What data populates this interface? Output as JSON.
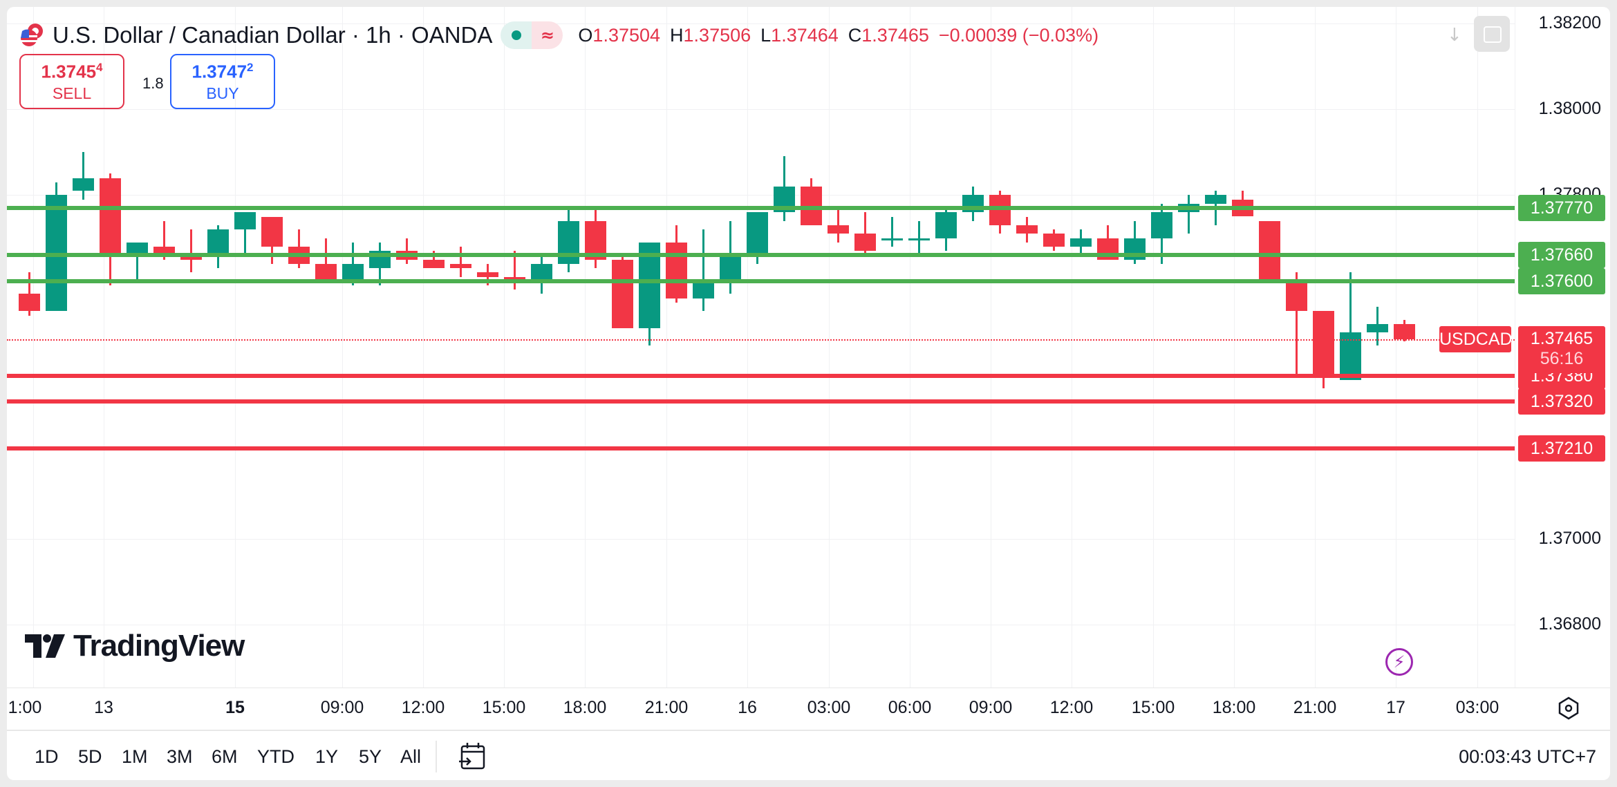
{
  "header": {
    "title": "U.S. Dollar / Canadian Dollar · 1h · OANDA",
    "symbol_icon": "usd-cad-flags-icon",
    "status_chip": {
      "market_open_icon": "green-dot",
      "delayed_icon": "≈"
    },
    "ohlc": {
      "o_label": "O",
      "o": "1.37504",
      "h_label": "H",
      "h": "1.37506",
      "l_label": "L",
      "l": "1.37464",
      "c_label": "C",
      "c": "1.37465",
      "change": "−0.00039 (−0.03%)"
    }
  },
  "trade": {
    "sell_price": "1.3745",
    "sell_sup": "4",
    "sell_label": "SELL",
    "spread": "1.8",
    "buy_price": "1.3747",
    "buy_sup": "2",
    "buy_label": "BUY"
  },
  "colors": {
    "up": "#089981",
    "down": "#f23645",
    "support_line": "#4caf50",
    "resistance_line": "#f23645",
    "text": "#131722",
    "buy_blue": "#2962ff",
    "event_purple": "#9c27b0"
  },
  "price_axis": {
    "ticks": [
      "1.38200",
      "1.38000",
      "1.37800",
      "1.37000",
      "1.36800"
    ],
    "current_symbol": "USDCAD",
    "current_price": "1.37465",
    "countdown": "56:16"
  },
  "time_axis": {
    "labels": [
      "1:00",
      "13",
      "15",
      "09:00",
      "12:00",
      "15:00",
      "18:00",
      "21:00",
      "16",
      "03:00",
      "06:00",
      "09:00",
      "12:00",
      "15:00",
      "18:00",
      "21:00",
      "17",
      "03:00"
    ]
  },
  "toolbar": {
    "ranges": [
      "1D",
      "5D",
      "1M",
      "3M",
      "6M",
      "YTD",
      "1Y",
      "5Y",
      "All"
    ],
    "clock": "00:03:43 UTC+7"
  },
  "logo": {
    "text": "TradingView"
  },
  "chart_data": {
    "type": "candlestick",
    "title": "U.S. Dollar / Canadian Dollar · 1h · OANDA",
    "ylim": [
      1.366,
      1.383
    ],
    "y_ticks": [
      1.382,
      1.38,
      1.378,
      1.37,
      1.368
    ],
    "horizontal_lines": [
      {
        "price": 1.3777,
        "label": "1.37770",
        "color": "#4caf50"
      },
      {
        "price": 1.3766,
        "label": "1.37660",
        "color": "#4caf50"
      },
      {
        "price": 1.376,
        "label": "1.37600",
        "color": "#4caf50"
      },
      {
        "price": 1.3738,
        "label": "1.37380",
        "color": "#f23645"
      },
      {
        "price": 1.3732,
        "label": "1.37320",
        "color": "#f23645"
      },
      {
        "price": 1.3721,
        "label": "1.37210",
        "color": "#f23645"
      }
    ],
    "last_price": 1.37465,
    "candles": [
      {
        "o": 1.3757,
        "h": 1.3762,
        "l": 1.3752,
        "c": 1.3753
      },
      {
        "o": 1.3753,
        "h": 1.3783,
        "l": 1.3753,
        "c": 1.378
      },
      {
        "o": 1.3781,
        "h": 1.379,
        "l": 1.3779,
        "c": 1.3784
      },
      {
        "o": 1.3784,
        "h": 1.3785,
        "l": 1.3759,
        "c": 1.3766
      },
      {
        "o": 1.3766,
        "h": 1.3768,
        "l": 1.376,
        "c": 1.3769
      },
      {
        "o": 1.3768,
        "h": 1.3774,
        "l": 1.3765,
        "c": 1.3766
      },
      {
        "o": 1.3766,
        "h": 1.3772,
        "l": 1.3762,
        "c": 1.3765
      },
      {
        "o": 1.3766,
        "h": 1.3773,
        "l": 1.3763,
        "c": 1.3772
      },
      {
        "o": 1.3772,
        "h": 1.3775,
        "l": 1.3766,
        "c": 1.3776
      },
      {
        "o": 1.3775,
        "h": 1.3772,
        "l": 1.3764,
        "c": 1.3768
      },
      {
        "o": 1.3768,
        "h": 1.3772,
        "l": 1.3763,
        "c": 1.3764
      },
      {
        "o": 1.3764,
        "h": 1.377,
        "l": 1.376,
        "c": 1.376
      },
      {
        "o": 1.376,
        "h": 1.3769,
        "l": 1.3759,
        "c": 1.3764
      },
      {
        "o": 1.3763,
        "h": 1.3769,
        "l": 1.3759,
        "c": 1.3767
      },
      {
        "o": 1.3767,
        "h": 1.377,
        "l": 1.3764,
        "c": 1.3765
      },
      {
        "o": 1.3765,
        "h": 1.3767,
        "l": 1.3763,
        "c": 1.3763
      },
      {
        "o": 1.3764,
        "h": 1.3768,
        "l": 1.3761,
        "c": 1.3763
      },
      {
        "o": 1.3762,
        "h": 1.3764,
        "l": 1.3759,
        "c": 1.3761
      },
      {
        "o": 1.3761,
        "h": 1.3767,
        "l": 1.3758,
        "c": 1.376
      },
      {
        "o": 1.376,
        "h": 1.3766,
        "l": 1.3757,
        "c": 1.3764
      },
      {
        "o": 1.3764,
        "h": 1.3777,
        "l": 1.3762,
        "c": 1.3774
      },
      {
        "o": 1.3774,
        "h": 1.3777,
        "l": 1.3763,
        "c": 1.3765
      },
      {
        "o": 1.3765,
        "h": 1.3766,
        "l": 1.3749,
        "c": 1.3749
      },
      {
        "o": 1.3749,
        "h": 1.3769,
        "l": 1.3745,
        "c": 1.3769
      },
      {
        "o": 1.3769,
        "h": 1.3773,
        "l": 1.3755,
        "c": 1.3756
      },
      {
        "o": 1.3756,
        "h": 1.3772,
        "l": 1.3753,
        "c": 1.376
      },
      {
        "o": 1.376,
        "h": 1.3774,
        "l": 1.3757,
        "c": 1.3766
      },
      {
        "o": 1.3766,
        "h": 1.3776,
        "l": 1.3764,
        "c": 1.3776
      },
      {
        "o": 1.3776,
        "h": 1.3789,
        "l": 1.3774,
        "c": 1.3782
      },
      {
        "o": 1.3782,
        "h": 1.3784,
        "l": 1.3773,
        "c": 1.3773
      },
      {
        "o": 1.3773,
        "h": 1.3777,
        "l": 1.3769,
        "c": 1.3771
      },
      {
        "o": 1.3771,
        "h": 1.3776,
        "l": 1.3766,
        "c": 1.3767
      },
      {
        "o": 1.377,
        "h": 1.3775,
        "l": 1.3768,
        "c": 1.377
      },
      {
        "o": 1.377,
        "h": 1.3774,
        "l": 1.3766,
        "c": 1.377
      },
      {
        "o": 1.377,
        "h": 1.3777,
        "l": 1.3767,
        "c": 1.3776
      },
      {
        "o": 1.3776,
        "h": 1.3782,
        "l": 1.3774,
        "c": 1.378
      },
      {
        "o": 1.378,
        "h": 1.3781,
        "l": 1.3771,
        "c": 1.3773
      },
      {
        "o": 1.3773,
        "h": 1.3775,
        "l": 1.3769,
        "c": 1.3771
      },
      {
        "o": 1.3771,
        "h": 1.3772,
        "l": 1.3767,
        "c": 1.3768
      },
      {
        "o": 1.3768,
        "h": 1.3772,
        "l": 1.3766,
        "c": 1.377
      },
      {
        "o": 1.377,
        "h": 1.3773,
        "l": 1.3765,
        "c": 1.3765
      },
      {
        "o": 1.3765,
        "h": 1.3774,
        "l": 1.3764,
        "c": 1.377
      },
      {
        "o": 1.377,
        "h": 1.3778,
        "l": 1.3764,
        "c": 1.3776
      },
      {
        "o": 1.3776,
        "h": 1.378,
        "l": 1.3771,
        "c": 1.3778
      },
      {
        "o": 1.3778,
        "h": 1.3781,
        "l": 1.3773,
        "c": 1.378
      },
      {
        "o": 1.3779,
        "h": 1.3781,
        "l": 1.3776,
        "c": 1.3775
      },
      {
        "o": 1.3774,
        "h": 1.3774,
        "l": 1.376,
        "c": 1.376
      },
      {
        "o": 1.376,
        "h": 1.3762,
        "l": 1.3738,
        "c": 1.3753
      },
      {
        "o": 1.3753,
        "h": 1.3753,
        "l": 1.3735,
        "c": 1.3738
      },
      {
        "o": 1.3737,
        "h": 1.3762,
        "l": 1.3737,
        "c": 1.3748
      },
      {
        "o": 1.3748,
        "h": 1.3754,
        "l": 1.3745,
        "c": 1.375
      },
      {
        "o": 1.375,
        "h": 1.3751,
        "l": 1.3746,
        "c": 1.37465
      }
    ]
  }
}
